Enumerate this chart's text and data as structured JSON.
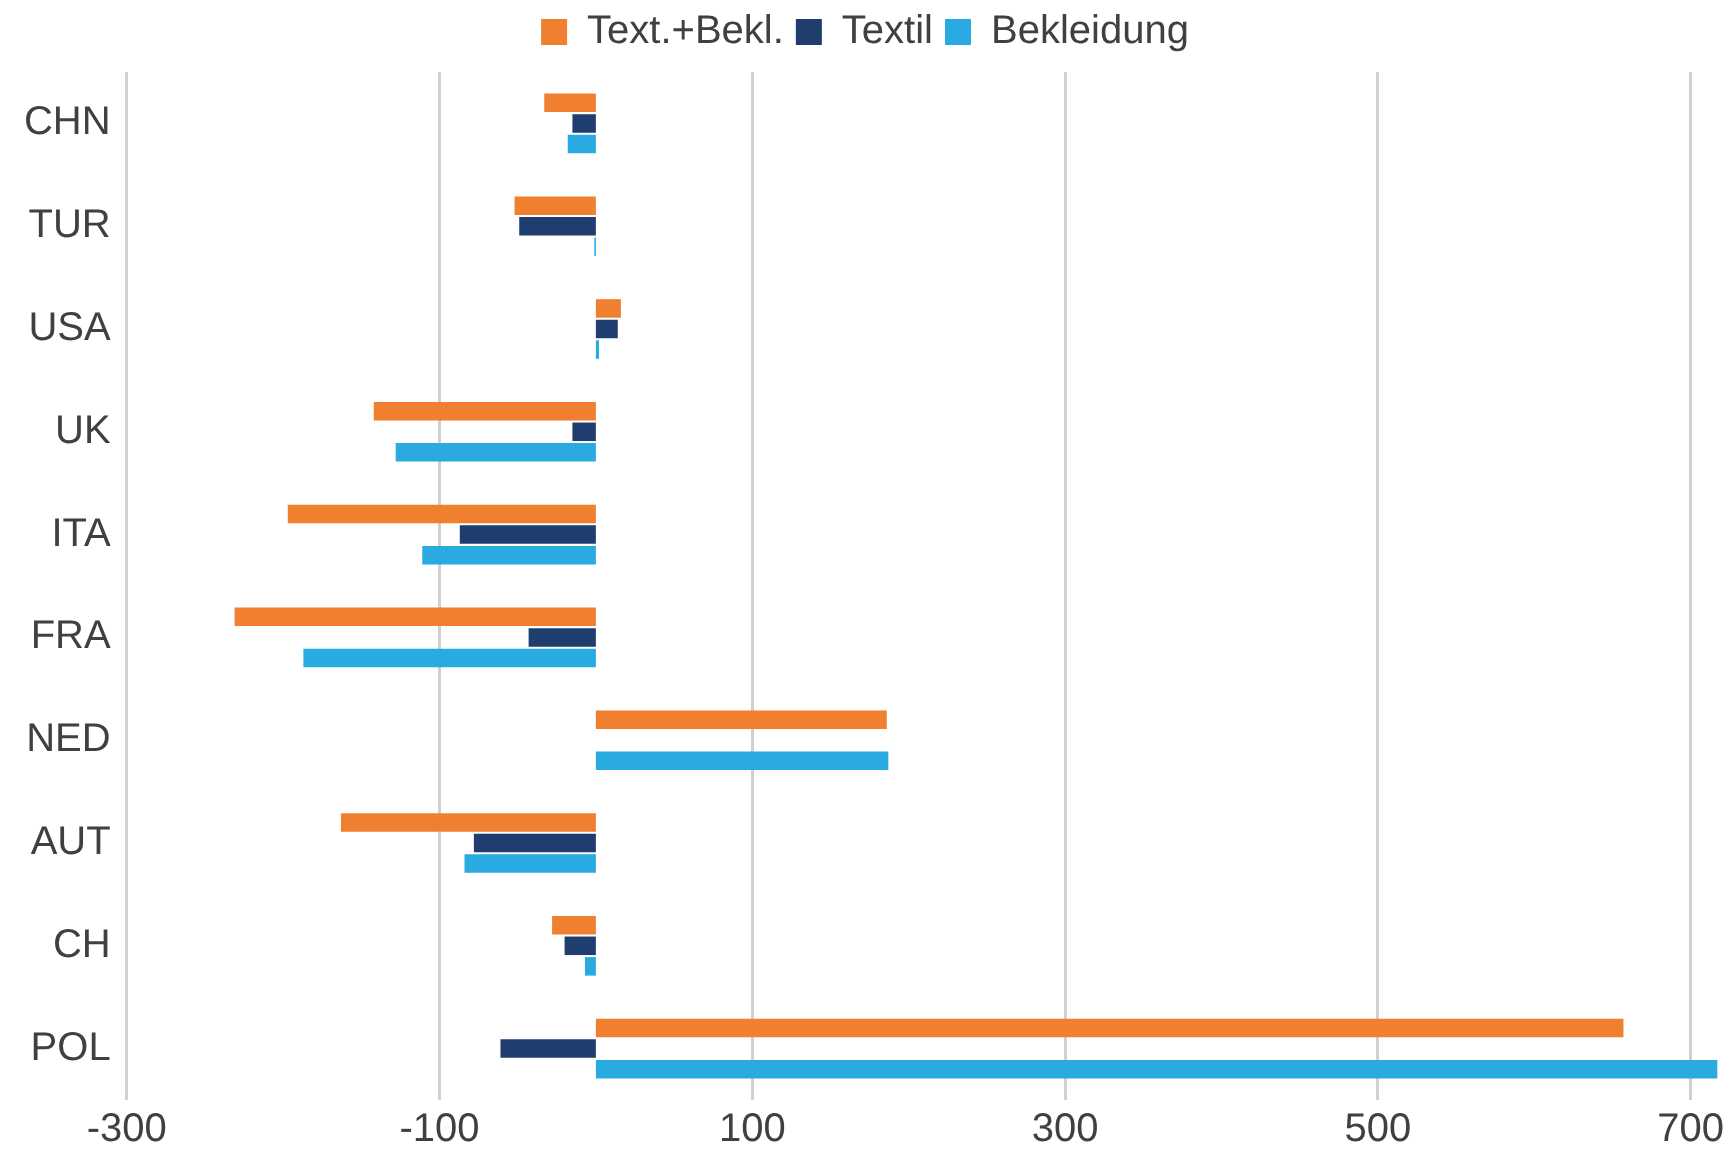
{
  "chart_data": {
    "type": "bar",
    "orientation": "horizontal",
    "categories": [
      "CHN",
      "TUR",
      "USA",
      "UK",
      "ITA",
      "FRA",
      "NED",
      "AUT",
      "CH",
      "POL"
    ],
    "series": [
      {
        "name": "Text.+Bekl.",
        "color": "#f07f2f",
        "values": [
          -33,
          -52,
          16,
          -142,
          -197,
          -231,
          186,
          -163,
          -28,
          657
        ]
      },
      {
        "name": "Textil",
        "color": "#1f3d6e",
        "values": [
          -15,
          -49,
          14,
          -15,
          -87,
          -43,
          null,
          -78,
          -20,
          -61
        ]
      },
      {
        "name": "Bekleidung",
        "color": "#29abe2",
        "values": [
          -18,
          -1,
          2,
          -128,
          -111,
          -187,
          187,
          -84,
          -7,
          717
        ]
      }
    ],
    "xlim": [
      -300,
      720
    ],
    "xticks": [
      -300,
      -100,
      100,
      300,
      500,
      700
    ],
    "grid": "x",
    "legend": "top"
  }
}
